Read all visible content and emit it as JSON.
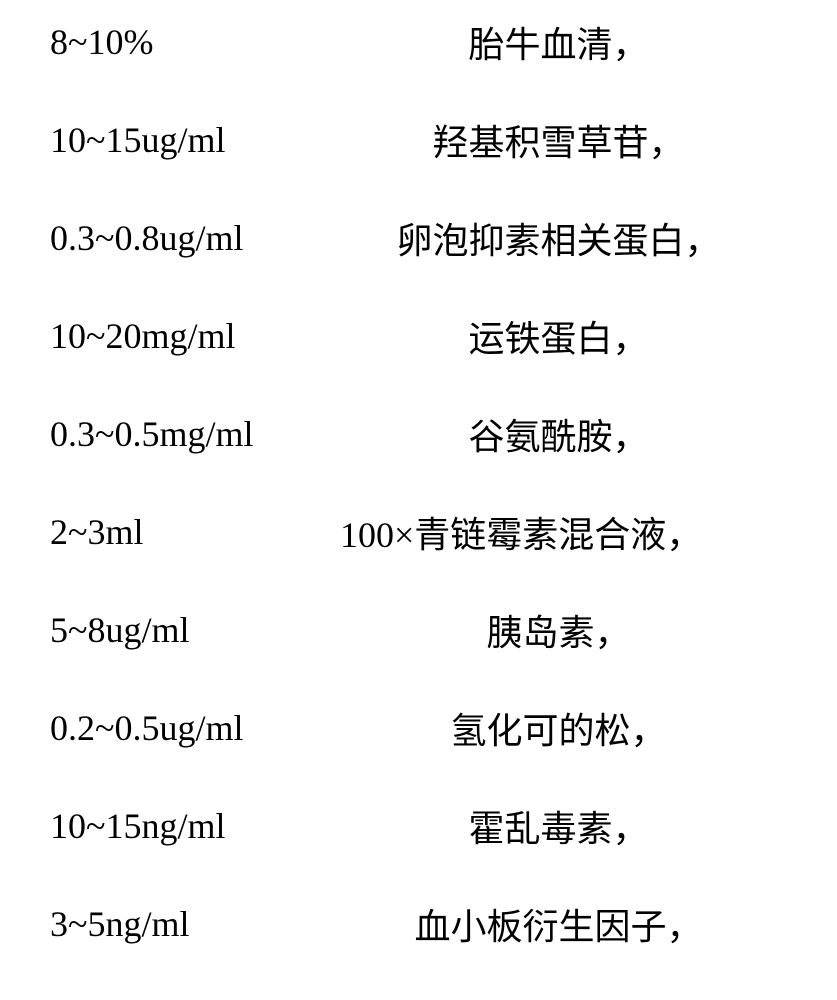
{
  "rows": [
    {
      "amount": "8~10%",
      "name": "胎牛血清，",
      "align": "center"
    },
    {
      "amount": "10~15ug/ml",
      "name": "羟基积雪草苷，",
      "align": "center"
    },
    {
      "amount": "0.3~0.8ug/ml",
      "name": "卵泡抑素相关蛋白，",
      "align": "center"
    },
    {
      "amount": "10~20mg/ml",
      "name": "运铁蛋白，",
      "align": "center"
    },
    {
      "amount": "0.3~0.5mg/ml",
      "name": "谷氨酰胺，",
      "align": "center"
    },
    {
      "amount": "2~3ml",
      "name": "100×青链霉素混合液，",
      "align": "left"
    },
    {
      "amount": "5~8ug/ml",
      "name": "胰岛素，",
      "align": "center"
    },
    {
      "amount": "0.2~0.5ug/ml",
      "name": "氢化可的松，",
      "align": "center"
    },
    {
      "amount": "10~15ng/ml",
      "name": "霍乱毒素，",
      "align": "center"
    },
    {
      "amount": "3~5ng/ml",
      "name": "血小板衍生因子，",
      "align": "center"
    }
  ],
  "styling": {
    "font_size": 36,
    "row_spacing": 54,
    "text_color": "#000000",
    "background_color": "#ffffff",
    "amount_column_width": 280
  }
}
